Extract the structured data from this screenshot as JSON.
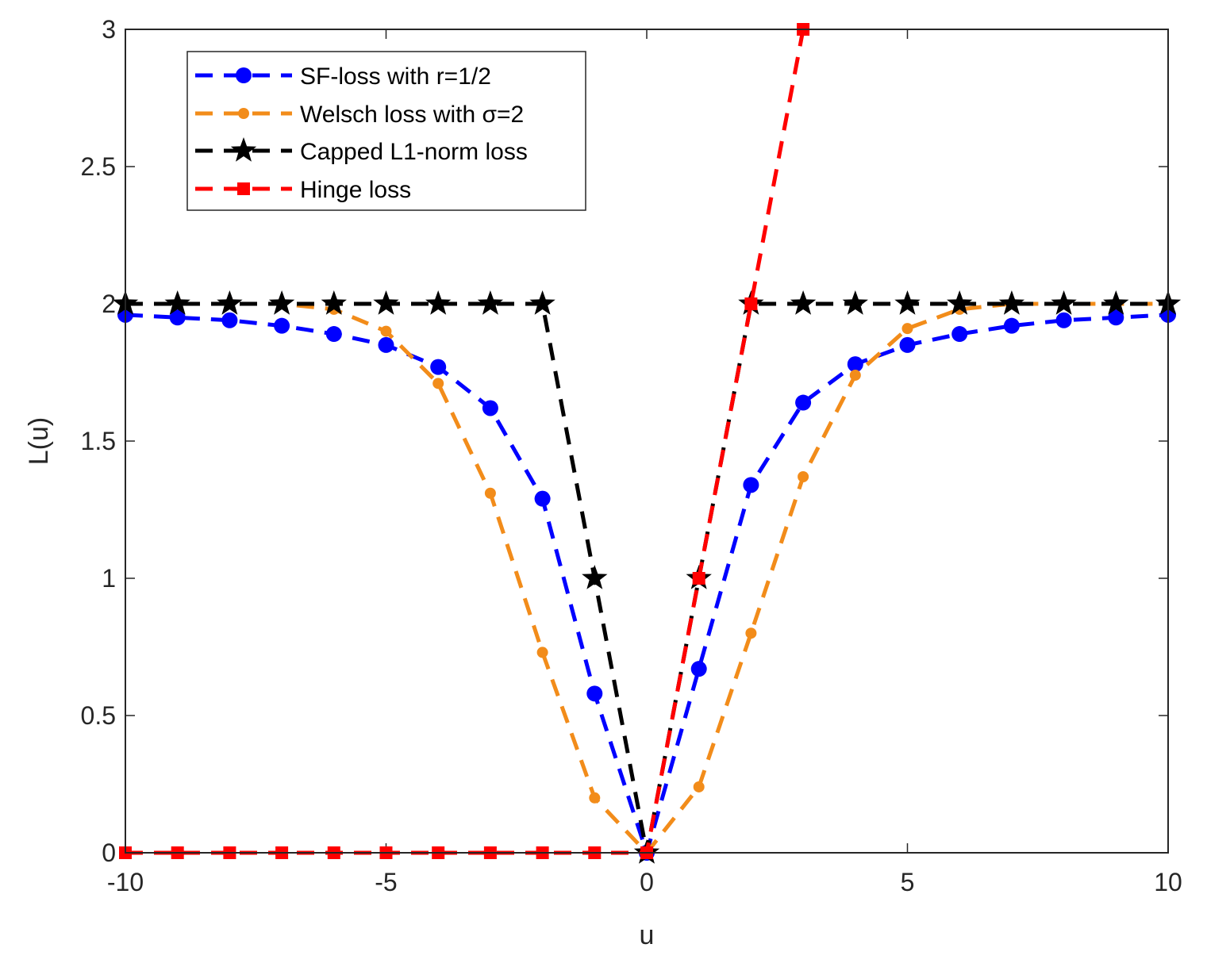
{
  "chart_data": {
    "type": "line",
    "title": "",
    "xlabel": "u",
    "ylabel": "L(u)",
    "xlim": [
      -10,
      10
    ],
    "ylim": [
      0,
      3
    ],
    "grid": false,
    "legend_position": "top-left",
    "x_ticks": [
      -10,
      -5,
      0,
      5,
      10
    ],
    "x_tick_labels": [
      "-10",
      "-5",
      "0",
      "5",
      "10"
    ],
    "y_ticks": [
      0,
      0.5,
      1,
      1.5,
      2,
      2.5,
      3
    ],
    "y_tick_labels": [
      "0",
      "0.5",
      "1",
      "1.5",
      "2",
      "2.5",
      "3"
    ],
    "series": [
      {
        "name": "SF-loss with r=1/2",
        "color": "#0000ff",
        "marker": "circle",
        "x": [
          -10,
          -9,
          -8,
          -7,
          -6,
          -5,
          -4,
          -3,
          -2,
          -1,
          0,
          1,
          2,
          3,
          4,
          5,
          6,
          7,
          8,
          9,
          10
        ],
        "y": [
          1.96,
          1.95,
          1.94,
          1.92,
          1.89,
          1.85,
          1.77,
          1.62,
          1.29,
          0.58,
          0,
          0.67,
          1.34,
          1.64,
          1.78,
          1.85,
          1.89,
          1.92,
          1.94,
          1.95,
          1.96
        ]
      },
      {
        "name": "Welsch loss with σ=2",
        "color": "#f28c1a",
        "marker": "small-circle",
        "x": [
          -10,
          -9,
          -8,
          -7,
          -6,
          -5,
          -4,
          -3,
          -2,
          -1,
          0,
          1,
          2,
          3,
          4,
          5,
          6,
          7,
          8,
          9,
          10
        ],
        "y": [
          2.0,
          2.0,
          2.0,
          2.0,
          1.98,
          1.9,
          1.71,
          1.31,
          0.73,
          0.2,
          0,
          0.24,
          0.8,
          1.37,
          1.74,
          1.91,
          1.98,
          2.0,
          2.0,
          2.0,
          2.0
        ]
      },
      {
        "name": "Capped L1-norm loss",
        "color": "#000000",
        "marker": "star",
        "x": [
          -10,
          -9,
          -8,
          -7,
          -6,
          -5,
          -4,
          -3,
          -2,
          -1,
          0,
          1,
          2,
          3,
          4,
          5,
          6,
          7,
          8,
          9,
          10
        ],
        "y": [
          2,
          2,
          2,
          2,
          2,
          2,
          2,
          2,
          2,
          1,
          0,
          1,
          2,
          2,
          2,
          2,
          2,
          2,
          2,
          2,
          2
        ]
      },
      {
        "name": "Hinge loss",
        "color": "#ff0000",
        "marker": "square",
        "x": [
          -10,
          -9,
          -8,
          -7,
          -6,
          -5,
          -4,
          -3,
          -2,
          -1,
          0,
          1,
          2,
          3
        ],
        "y": [
          0,
          0,
          0,
          0,
          0,
          0,
          0,
          0,
          0,
          0,
          0,
          1,
          2,
          3
        ]
      }
    ]
  }
}
